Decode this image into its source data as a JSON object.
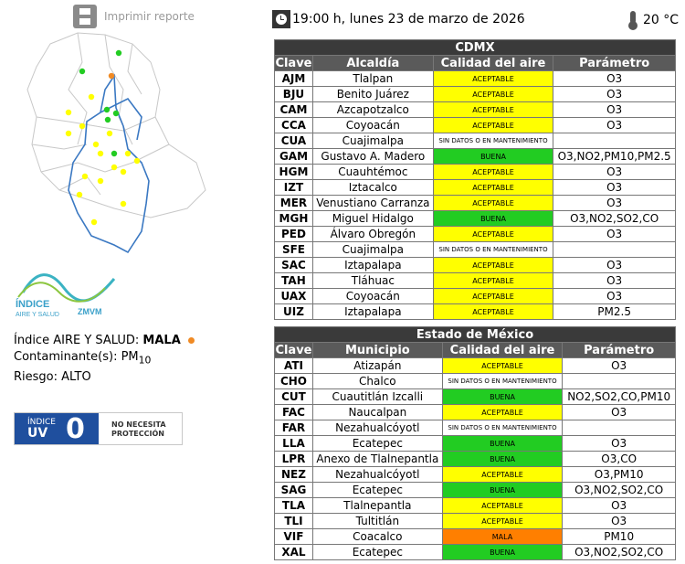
{
  "print": {
    "label": "Imprimir reporte",
    "icon": "printer-icon"
  },
  "datetime": {
    "text": "19:00 h, lunes 23 de marzo de 2026",
    "icon": "clock-icon"
  },
  "temperature": {
    "text": "20 °C",
    "icon": "thermometer-icon"
  },
  "logo": {
    "line1": "ÍNDICE",
    "line2": "AIRE Y SALUD",
    "line3": "ZMVM"
  },
  "info": {
    "indice_label": "Índice AIRE Y SALUD:",
    "indice_value": "MALA",
    "contaminante_label": "Contaminante(s):",
    "contaminante_value": "PM",
    "contaminante_sub": "10",
    "riesgo_label": "Riesgo:",
    "riesgo_value": "ALTO"
  },
  "uv": {
    "indice": "ÍNDICE",
    "uv": "UV",
    "value": "0",
    "message_line1": "NO NECESITA",
    "message_line2": "PROTECCIÓN"
  },
  "colors": {
    "aceptable": "#ffff00",
    "buena": "#22cc22",
    "mala": "#ff7f00",
    "uv_blue": "#1f4f9e",
    "header": "#3a3a3a"
  },
  "cdmx": {
    "title": "CDMX",
    "headers": [
      "Clave",
      "Alcaldía",
      "Calidad del aire",
      "Parámetro"
    ],
    "rows": [
      {
        "clave": "AJM",
        "nombre": "Tlalpan",
        "calidad": "ACEPTABLE",
        "param": "O3"
      },
      {
        "clave": "BJU",
        "nombre": "Benito Juárez",
        "calidad": "ACEPTABLE",
        "param": "O3"
      },
      {
        "clave": "CAM",
        "nombre": "Azcapotzalco",
        "calidad": "ACEPTABLE",
        "param": "O3"
      },
      {
        "clave": "CCA",
        "nombre": "Coyoacán",
        "calidad": "ACEPTABLE",
        "param": "O3"
      },
      {
        "clave": "CUA",
        "nombre": "Cuajimalpa",
        "calidad": "SIN DATOS O EN MANTENIMIENTO",
        "param": ""
      },
      {
        "clave": "GAM",
        "nombre": "Gustavo A. Madero",
        "calidad": "BUENA",
        "param": "O3,NO2,PM10,PM2.5"
      },
      {
        "clave": "HGM",
        "nombre": "Cuauhtémoc",
        "calidad": "ACEPTABLE",
        "param": "O3"
      },
      {
        "clave": "IZT",
        "nombre": "Iztacalco",
        "calidad": "ACEPTABLE",
        "param": "O3"
      },
      {
        "clave": "MER",
        "nombre": "Venustiano Carranza",
        "calidad": "ACEPTABLE",
        "param": "O3"
      },
      {
        "clave": "MGH",
        "nombre": "Miguel Hidalgo",
        "calidad": "BUENA",
        "param": "O3,NO2,SO2,CO"
      },
      {
        "clave": "PED",
        "nombre": "Álvaro Obregón",
        "calidad": "ACEPTABLE",
        "param": "O3"
      },
      {
        "clave": "SFE",
        "nombre": "Cuajimalpa",
        "calidad": "SIN DATOS O EN MANTENIMIENTO",
        "param": ""
      },
      {
        "clave": "SAC",
        "nombre": "Iztapalapa",
        "calidad": "ACEPTABLE",
        "param": "O3"
      },
      {
        "clave": "TAH",
        "nombre": "Tláhuac",
        "calidad": "ACEPTABLE",
        "param": "O3"
      },
      {
        "clave": "UAX",
        "nombre": "Coyoacán",
        "calidad": "ACEPTABLE",
        "param": "O3"
      },
      {
        "clave": "UIZ",
        "nombre": "Iztapalapa",
        "calidad": "ACEPTABLE",
        "param": "PM2.5"
      }
    ]
  },
  "edomex": {
    "title": "Estado de México",
    "headers": [
      "Clave",
      "Municipio",
      "Calidad del aire",
      "Parámetro"
    ],
    "rows": [
      {
        "clave": "ATI",
        "nombre": "Atizapán",
        "calidad": "ACEPTABLE",
        "param": "O3"
      },
      {
        "clave": "CHO",
        "nombre": "Chalco",
        "calidad": "SIN DATOS O EN MANTENIMIENTO",
        "param": ""
      },
      {
        "clave": "CUT",
        "nombre": "Cuautitlán Izcalli",
        "calidad": "BUENA",
        "param": "NO2,SO2,CO,PM10"
      },
      {
        "clave": "FAC",
        "nombre": "Naucalpan",
        "calidad": "ACEPTABLE",
        "param": "O3"
      },
      {
        "clave": "FAR",
        "nombre": "Nezahualcóyotl",
        "calidad": "SIN DATOS O EN MANTENIMIENTO",
        "param": ""
      },
      {
        "clave": "LLA",
        "nombre": "Ecatepec",
        "calidad": "BUENA",
        "param": "O3"
      },
      {
        "clave": "LPR",
        "nombre": "Anexo de Tlalnepantla",
        "calidad": "BUENA",
        "param": "O3,CO"
      },
      {
        "clave": "NEZ",
        "nombre": "Nezahualcóyotl",
        "calidad": "ACEPTABLE",
        "param": "O3,PM10"
      },
      {
        "clave": "SAG",
        "nombre": "Ecatepec",
        "calidad": "BUENA",
        "param": "O3,NO2,SO2,CO"
      },
      {
        "clave": "TLA",
        "nombre": "Tlalnepantla",
        "calidad": "ACEPTABLE",
        "param": "O3"
      },
      {
        "clave": "TLI",
        "nombre": "Tultitlán",
        "calidad": "ACEPTABLE",
        "param": "O3"
      },
      {
        "clave": "VIF",
        "nombre": "Coacalco",
        "calidad": "MALA",
        "param": "PM10"
      },
      {
        "clave": "XAL",
        "nombre": "Ecatepec",
        "calidad": "BUENA",
        "param": "O3,NO2,SO2,CO"
      }
    ]
  },
  "map": {
    "icon": "station-map",
    "stations": [
      {
        "color": "#22cc22"
      },
      {
        "color": "#f08a24"
      },
      {
        "color": "#22cc22"
      },
      {
        "color": "#ffff00"
      },
      {
        "color": "#22cc22"
      },
      {
        "color": "#ffff00"
      },
      {
        "color": "#22cc22"
      },
      {
        "color": "#22cc22"
      },
      {
        "color": "#ffff00"
      },
      {
        "color": "#ffff00"
      },
      {
        "color": "#ffff00"
      },
      {
        "color": "#ffff00"
      },
      {
        "color": "#22cc22"
      },
      {
        "color": "#ffff00"
      },
      {
        "color": "#ffff00"
      },
      {
        "color": "#ffff00"
      },
      {
        "color": "#ffff00"
      },
      {
        "color": "#ffff00"
      },
      {
        "color": "#ffff00"
      },
      {
        "color": "#ffff00"
      },
      {
        "color": "#ffff00"
      },
      {
        "color": "#ffff00"
      },
      {
        "color": "#ffff00"
      }
    ]
  }
}
